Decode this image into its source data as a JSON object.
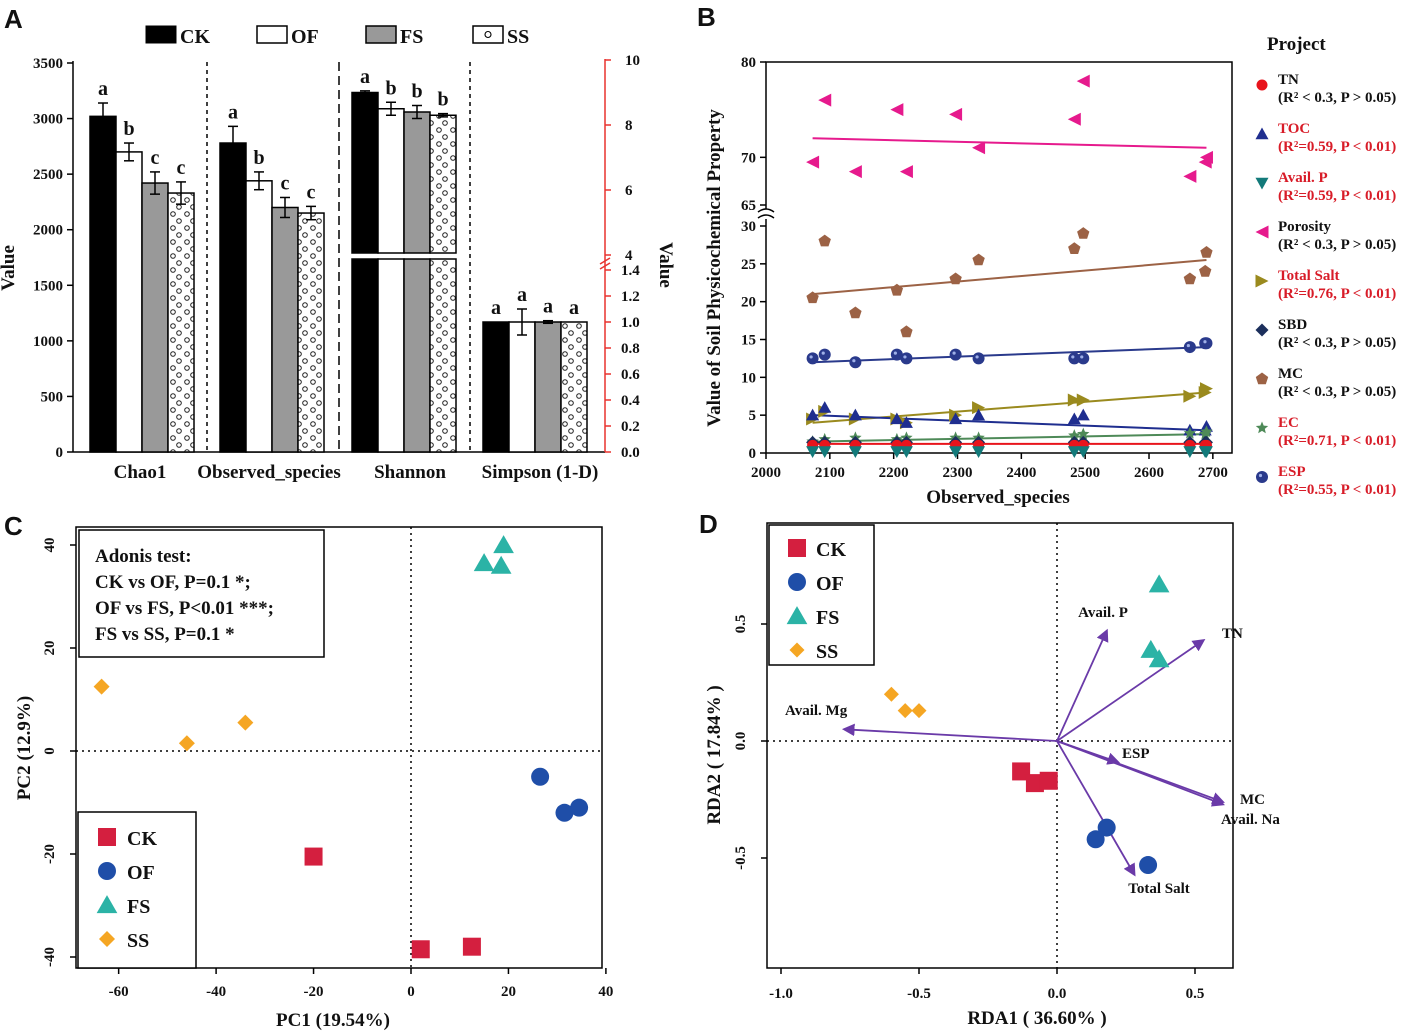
{
  "panel_labels": [
    "A",
    "B",
    "C",
    "D"
  ],
  "colors": {
    "CK": "#d41f3f",
    "OF": "#1f4ea8",
    "FS": "#2bb3a6",
    "SS": "#f5a623",
    "arrow": "#6a3aa8",
    "red_axis": "#e8332f",
    "TN": "#e8141c",
    "TOC": "#1f2e8f",
    "AvailP": "#137a7a",
    "Porosity": "#e61a8d",
    "TotalSalt": "#9a8a1e",
    "SBD": "#1c2f5c",
    "MC": "#9c6245",
    "EC": "#4e8a58",
    "ESP": "#2a3a8c"
  },
  "chart_data": [
    {
      "panel": "A",
      "type": "bar",
      "groups": [
        "CK",
        "OF",
        "FS",
        "SS"
      ],
      "legend": [
        "CK",
        "OF",
        "FS",
        "SS"
      ],
      "categories": [
        "Chao1",
        "Observed_species",
        "Shannon",
        "Simpson (1-D)"
      ],
      "ylabel_left": "Value",
      "ylabel_right": "Value",
      "left_ticks": [
        "0",
        "500",
        "1000",
        "1500",
        "2000",
        "2500",
        "3000",
        "3500"
      ],
      "ylim_left": [
        0,
        3500
      ],
      "right_ticks_upper": [
        "4",
        "6",
        "8",
        "10"
      ],
      "right_ticks_lower": [
        "0.0",
        "0.2",
        "0.4",
        "0.6",
        "0.8",
        "1.0",
        "1.2",
        "1.4"
      ],
      "series": [
        {
          "name": "Chao1",
          "values": [
            3020,
            2700,
            2420,
            2330
          ],
          "errors": [
            120,
            80,
            100,
            100
          ],
          "letters": [
            "a",
            "b",
            "c",
            "c"
          ]
        },
        {
          "name": "Observed_species",
          "values": [
            2780,
            2440,
            2200,
            2150
          ],
          "errors": [
            150,
            80,
            90,
            60
          ],
          "letters": [
            "a",
            "b",
            "c",
            "c"
          ]
        },
        {
          "name": "Shannon",
          "values": [
            9.0,
            8.5,
            8.4,
            8.3
          ],
          "errors": [
            0.05,
            0.2,
            0.2,
            0.05
          ],
          "letters": [
            "a",
            "b",
            "b",
            "b"
          ]
        },
        {
          "name": "Simpson (1-D)",
          "values": [
            1.0,
            1.0,
            1.0,
            1.0
          ],
          "errors": [
            0,
            0.1,
            0.01,
            0
          ],
          "letters": [
            "a",
            "a",
            "a",
            "a"
          ]
        }
      ]
    },
    {
      "panel": "B",
      "type": "scatter",
      "xlabel": "Observed_species",
      "ylabel": "Value of Soil Physicochemical Property",
      "x_ticks": [
        "2000",
        "2100",
        "2200",
        "2300",
        "2400",
        "2500",
        "2600",
        "2700"
      ],
      "xlim": [
        2000,
        2730
      ],
      "y_ticks_upper": [
        "65",
        "70",
        "80"
      ],
      "y_ticks_lower": [
        "0",
        "5",
        "10",
        "15",
        "20",
        "25",
        "30"
      ],
      "legend_title": "Project",
      "legend": [
        {
          "name": "TN",
          "stat": "(R² < 0.3, P > 0.05)",
          "significant": false
        },
        {
          "name": "TOC",
          "stat": "(R²=0.59, P < 0.01)",
          "significant": true
        },
        {
          "name": "Avail. P",
          "stat": "(R²=0.59, P < 0.01)",
          "significant": true
        },
        {
          "name": "Porosity",
          "stat": "(R² < 0.3, P > 0.05)",
          "significant": false
        },
        {
          "name": "Total Salt",
          "stat": "(R²=0.76, P < 0.01)",
          "significant": true
        },
        {
          "name": "SBD",
          "stat": "(R² < 0.3, P > 0.05)",
          "significant": false
        },
        {
          "name": "MC",
          "stat": "(R² < 0.3, P > 0.05)",
          "significant": false
        },
        {
          "name": "EC",
          "stat": "(R²=0.71, P < 0.01)",
          "significant": true
        },
        {
          "name": "ESP",
          "stat": "(R²=0.55, P < 0.01)",
          "significant": true
        }
      ],
      "x": [
        2073,
        2092,
        2140,
        2205,
        2220,
        2297,
        2333,
        2483,
        2497,
        2664,
        2688,
        2690
      ],
      "series": [
        {
          "name": "Porosity",
          "values": [
            69.5,
            76,
            68.5,
            75,
            68.5,
            74.5,
            71,
            74,
            78,
            68,
            69.5,
            70
          ]
        },
        {
          "name": "MC",
          "values": [
            20.5,
            28,
            18.5,
            21.5,
            16,
            23,
            25.5,
            27,
            29,
            23,
            24,
            26.5
          ]
        },
        {
          "name": "ESP",
          "values": [
            12.5,
            13,
            12,
            13,
            12.5,
            13,
            12.5,
            12.5,
            12.5,
            14,
            14.5,
            14.5
          ]
        },
        {
          "name": "Total Salt",
          "values": [
            4.5,
            5.5,
            4.5,
            4.5,
            4.0,
            5.0,
            6.0,
            7.0,
            7.0,
            7.5,
            8.0,
            8.5
          ]
        },
        {
          "name": "TOC",
          "values": [
            5,
            6,
            5,
            4.5,
            4,
            4.5,
            5,
            4.5,
            5,
            3,
            3,
            3.5
          ]
        },
        {
          "name": "EC",
          "values": [
            1.5,
            1.8,
            2,
            1.8,
            2,
            2,
            2,
            2.3,
            2.5,
            2.6,
            2.5,
            2.8
          ]
        },
        {
          "name": "SBD",
          "values": [
            1.4,
            1.4,
            1.4,
            1.4,
            1.4,
            1.4,
            1.4,
            1.4,
            1.4,
            1.4,
            1.4,
            1.4
          ]
        },
        {
          "name": "TN",
          "values": [
            1.0,
            1.0,
            1.0,
            1.0,
            1.0,
            1.0,
            1.0,
            1.0,
            1.0,
            1.0,
            1.0,
            1.0
          ]
        },
        {
          "name": "Avail. P",
          "values": [
            0.2,
            0.2,
            0.2,
            0.2,
            0.2,
            0.2,
            0.2,
            0.2,
            0.2,
            0.2,
            0.2,
            0.2
          ]
        }
      ],
      "fits": [
        {
          "name": "Porosity",
          "y_start": 72,
          "y_end": 71
        },
        {
          "name": "MC",
          "y_start": 21,
          "y_end": 25.5
        },
        {
          "name": "ESP",
          "y_start": 12,
          "y_end": 14
        },
        {
          "name": "Total Salt",
          "y_start": 4,
          "y_end": 8
        },
        {
          "name": "TOC",
          "y_start": 5,
          "y_end": 3
        },
        {
          "name": "EC",
          "y_start": 1.5,
          "y_end": 2.5
        },
        {
          "name": "TN",
          "y_start": 1.2,
          "y_end": 1.2
        }
      ]
    },
    {
      "panel": "C",
      "type": "scatter",
      "xlabel": "PC1 (19.54%)",
      "ylabel": "PC2 (12.9%)",
      "x_ticks": [
        "-60",
        "-40",
        "-20",
        "0",
        "20",
        "40"
      ],
      "y_ticks": [
        "-40",
        "-20",
        "0",
        "20",
        "40"
      ],
      "xlim": [
        -70,
        40
      ],
      "ylim": [
        -42,
        43
      ],
      "annotation_lines": [
        "Adonis test:",
        "CK vs OF, P=0.1 *;",
        "OF vs FS, P<0.01 ***;",
        "FS vs SS, P=0.1 *"
      ],
      "legend": [
        "CK",
        "OF",
        "FS",
        "SS"
      ],
      "series": [
        {
          "name": "CK",
          "points": [
            [
              -20,
              -20.5
            ],
            [
              2,
              -38.5
            ],
            [
              12.5,
              -38
            ]
          ]
        },
        {
          "name": "OF",
          "points": [
            [
              26.5,
              -5
            ],
            [
              31.5,
              -12
            ],
            [
              34.5,
              -11
            ]
          ]
        },
        {
          "name": "FS",
          "points": [
            [
              15,
              36.5
            ],
            [
              18.5,
              36
            ],
            [
              19,
              40
            ]
          ]
        },
        {
          "name": "SS",
          "points": [
            [
              -63.5,
              12.5
            ],
            [
              -46,
              1.5
            ],
            [
              -34,
              5.5
            ]
          ]
        }
      ]
    },
    {
      "panel": "D",
      "type": "scatter",
      "xlabel": "RDA1 ( 36.60% )",
      "ylabel": "RDA2 ( 17.84% )",
      "x_ticks": [
        "-1.0",
        "-0.5",
        "0.0",
        "0.5"
      ],
      "y_ticks": [
        "-0.5",
        "0.0",
        "0.5"
      ],
      "xlim": [
        -1.05,
        0.8
      ],
      "ylim": [
        -0.98,
        0.87
      ],
      "legend": [
        "CK",
        "OF",
        "FS",
        "SS"
      ],
      "series": [
        {
          "name": "CK",
          "points": [
            [
              -0.13,
              -0.13
            ],
            [
              -0.08,
              -0.18
            ],
            [
              -0.03,
              -0.17
            ]
          ]
        },
        {
          "name": "OF",
          "points": [
            [
              0.14,
              -0.42
            ],
            [
              0.18,
              -0.37
            ],
            [
              0.33,
              -0.53
            ]
          ]
        },
        {
          "name": "FS",
          "points": [
            [
              0.34,
              0.39
            ],
            [
              0.37,
              0.35
            ],
            [
              0.37,
              0.67
            ]
          ]
        },
        {
          "name": "SS",
          "points": [
            [
              -0.6,
              0.2
            ],
            [
              -0.55,
              0.13
            ],
            [
              -0.5,
              0.13
            ]
          ]
        }
      ],
      "arrows": [
        {
          "name": "Avail. P",
          "x": 0.18,
          "y": 0.47
        },
        {
          "name": "TN",
          "x": 0.53,
          "y": 0.43
        },
        {
          "name": "Avail. Mg",
          "x": -0.77,
          "y": 0.05
        },
        {
          "name": "ESP",
          "x": 0.22,
          "y": -0.09
        },
        {
          "name": "MC",
          "x": 0.6,
          "y": -0.26
        },
        {
          "name": "Avail. Na",
          "x": 0.6,
          "y": -0.27
        },
        {
          "name": "Total Salt",
          "x": 0.28,
          "y": -0.57
        }
      ]
    }
  ]
}
